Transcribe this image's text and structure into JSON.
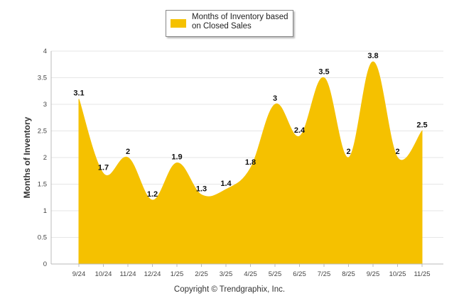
{
  "chart_data": {
    "type": "area",
    "categories": [
      "9/24",
      "10/24",
      "11/24",
      "12/24",
      "1/25",
      "2/25",
      "3/25",
      "4/25",
      "5/25",
      "6/25",
      "7/25",
      "8/25",
      "9/25",
      "10/25",
      "11/25"
    ],
    "series": [
      {
        "name": "Months of Inventory based on Closed Sales",
        "values": [
          3.1,
          1.7,
          2,
          1.2,
          1.9,
          1.3,
          1.4,
          1.8,
          3,
          2.4,
          3.5,
          2,
          3.8,
          2,
          2.5
        ],
        "labels": [
          "3.1",
          "1.7",
          "2",
          "1.2",
          "1.9",
          "1.3",
          "1.4",
          "1.8",
          "3",
          "2.4",
          "3.5",
          "2",
          "3.8",
          "2",
          "2.5"
        ]
      }
    ],
    "ylabel": "Months of Inventory",
    "xlabel": "",
    "ylim": [
      0,
      4
    ],
    "yticks": [
      "0",
      "0.5",
      "1",
      "1.5",
      "2",
      "2.5",
      "3",
      "3.5",
      "4"
    ],
    "grid": true,
    "legend_position": "top-center",
    "color": "#F5C100"
  },
  "legend": {
    "line1": "Months of Inventory based",
    "line2": "on Closed Sales"
  },
  "copyright": "Copyright © Trendgraphix, Inc."
}
